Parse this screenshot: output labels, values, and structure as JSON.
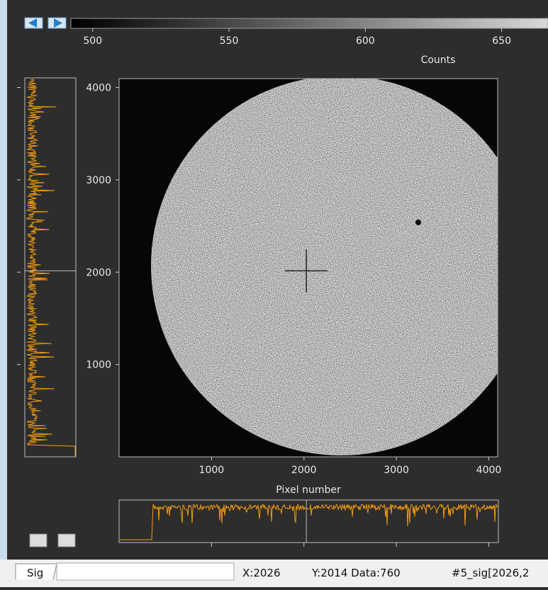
{
  "colorbar": {
    "clim": [
      492,
      667
    ],
    "ticks": [
      500,
      550,
      600,
      650
    ],
    "label": "Counts"
  },
  "image": {
    "xlim": [
      0,
      4096
    ],
    "ylim": [
      0,
      4096
    ],
    "xticks": [
      1000,
      2000,
      3000,
      4000
    ],
    "yticks": [
      1000,
      2000,
      3000,
      4000
    ],
    "xlabel": "Pixel number",
    "cursor": [
      2026,
      2014
    ]
  },
  "status": {
    "tab": "Sig",
    "x": "X:2026",
    "y": "Y:2014 Data:760",
    "name": "#5_sig[2026,2"
  }
}
